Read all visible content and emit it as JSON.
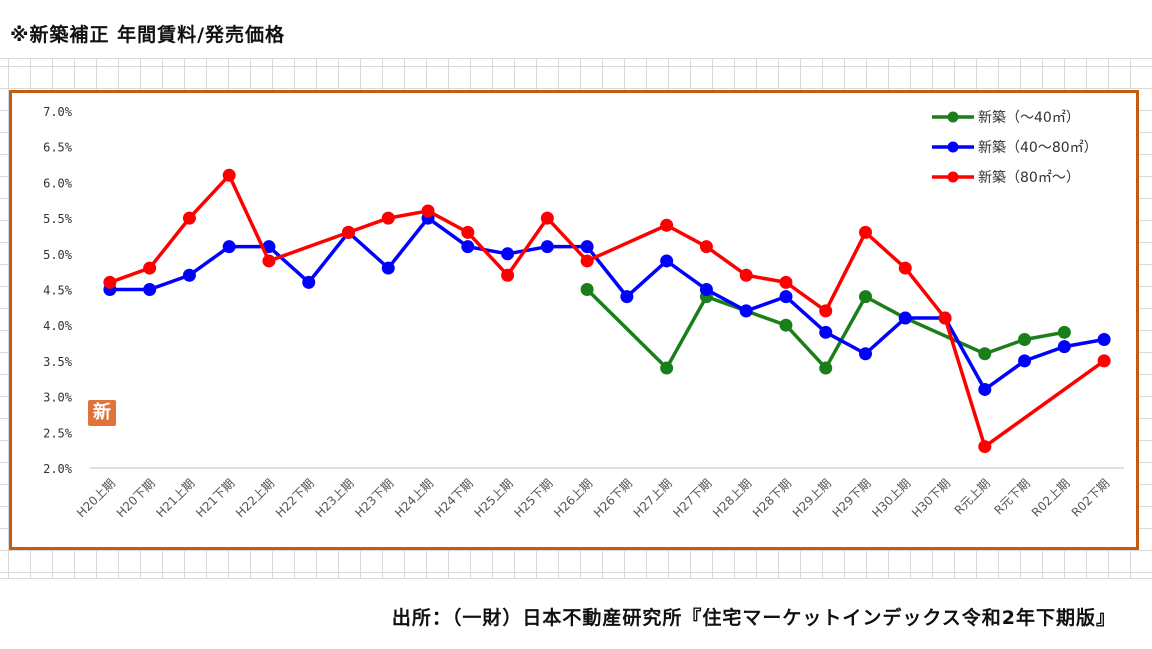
{
  "page": {
    "title": "※新築補正 年間賃料/発売価格",
    "source": "出所：（一財）日本不動産研究所『住宅マーケットインデックス令和2年下期版』",
    "badge": "新"
  },
  "chart_data": {
    "type": "line",
    "title": "",
    "xlabel": "",
    "ylabel": "",
    "ylim": [
      2.0,
      7.0
    ],
    "yticks": [
      "2.0%",
      "2.5%",
      "3.0%",
      "3.5%",
      "4.0%",
      "4.5%",
      "5.0%",
      "5.5%",
      "6.0%",
      "6.5%",
      "7.0%"
    ],
    "grid": false,
    "legend": "top-right",
    "categories": [
      "H20上期",
      "H20下期",
      "H21上期",
      "H21下期",
      "H22上期",
      "H22下期",
      "H23上期",
      "H23下期",
      "H24上期",
      "H24下期",
      "H25上期",
      "H25下期",
      "H26上期",
      "H26下期",
      "H27上期",
      "H27下期",
      "H28上期",
      "H28下期",
      "H29上期",
      "H29下期",
      "H30上期",
      "H30下期",
      "R元上期",
      "R元下期",
      "R02上期",
      "R02下期"
    ],
    "series": [
      {
        "name": "新築（～40㎡）",
        "color": "#1a7f1a",
        "values": [
          null,
          null,
          null,
          null,
          null,
          null,
          null,
          null,
          null,
          null,
          null,
          null,
          4.5,
          null,
          3.4,
          4.4,
          4.2,
          4.0,
          3.4,
          4.4,
          4.1,
          null,
          3.6,
          3.8,
          3.9,
          null
        ]
      },
      {
        "name": "新築（40～80㎡）",
        "color": "#0000ff",
        "values": [
          4.5,
          4.5,
          4.7,
          5.1,
          5.1,
          4.6,
          5.3,
          4.8,
          5.5,
          5.1,
          5.0,
          5.1,
          5.1,
          4.4,
          4.9,
          4.5,
          4.2,
          4.4,
          3.9,
          3.6,
          4.1,
          4.1,
          3.1,
          3.5,
          3.7,
          3.8
        ]
      },
      {
        "name": "新築（80㎡～）",
        "color": "#ff0000",
        "values": [
          4.6,
          4.8,
          5.5,
          6.1,
          4.9,
          null,
          5.3,
          5.5,
          5.6,
          5.3,
          4.7,
          5.5,
          4.9,
          null,
          5.4,
          5.1,
          4.7,
          4.6,
          4.2,
          5.3,
          4.8,
          4.1,
          2.3,
          null,
          null,
          3.5
        ]
      }
    ]
  }
}
